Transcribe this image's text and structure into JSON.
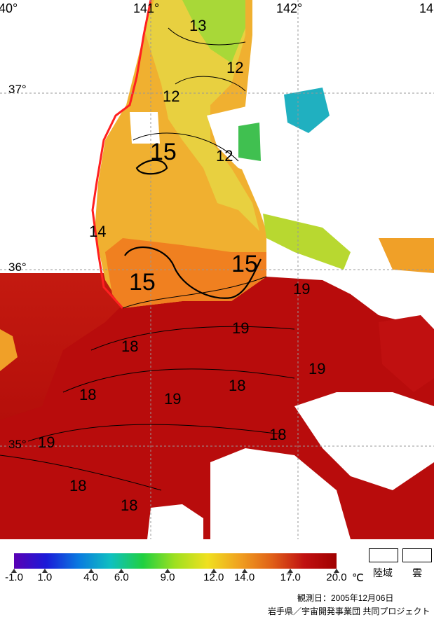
{
  "map": {
    "longitude_labels": [
      "40°",
      "141°",
      "142°",
      "14"
    ],
    "latitude_labels": [
      "37°",
      "36°",
      "35°"
    ],
    "contour_labels": [
      {
        "text": "13",
        "big": false
      },
      {
        "text": "12",
        "big": false
      },
      {
        "text": "12",
        "big": false
      },
      {
        "text": "15",
        "big": true
      },
      {
        "text": "12",
        "big": false
      },
      {
        "text": "14",
        "big": false
      },
      {
        "text": "15",
        "big": true
      },
      {
        "text": "15",
        "big": true
      },
      {
        "text": "19",
        "big": false
      },
      {
        "text": "19",
        "big": false
      },
      {
        "text": "18",
        "big": false
      },
      {
        "text": "19",
        "big": false
      },
      {
        "text": "18",
        "big": false
      },
      {
        "text": "18",
        "big": false
      },
      {
        "text": "19",
        "big": false
      },
      {
        "text": "18",
        "big": false
      },
      {
        "text": "19",
        "big": false
      },
      {
        "text": "18",
        "big": false
      },
      {
        "text": "18",
        "big": false
      }
    ],
    "colors": {
      "warm": "#b40a0a",
      "mid_orange": "#f07820",
      "yellow": "#f0d040",
      "green": "#60d030",
      "cyan": "#20a0c0",
      "land": "#ffffff",
      "cloud": "#ffffff",
      "coast_line": "#ff2020"
    }
  },
  "legend": {
    "gradient_colors": [
      "#5a00b4",
      "#1a1ad8",
      "#0a7ae0",
      "#10c0c0",
      "#20d040",
      "#a0e020",
      "#f0e020",
      "#f0a020",
      "#e06018",
      "#c01010",
      "#a00000"
    ],
    "ticks": [
      {
        "label": "-1.0",
        "value": -1.0
      },
      {
        "label": "1.0",
        "value": 1.0
      },
      {
        "label": "4.0",
        "value": 4.0
      },
      {
        "label": "6.0",
        "value": 6.0
      },
      {
        "label": "9.0",
        "value": 9.0
      },
      {
        "label": "12.0",
        "value": 12.0
      },
      {
        "label": "14.0",
        "value": 14.0
      },
      {
        "label": "17.0",
        "value": 17.0
      },
      {
        "label": "20.0",
        "value": 20.0
      }
    ],
    "unit": "℃",
    "land_label": "陸域",
    "cloud_label": "雲",
    "date_text": "観測日：2005年12月06日",
    "credit_text": "岩手県／宇宙開発事業団 共同プロジェクト"
  }
}
